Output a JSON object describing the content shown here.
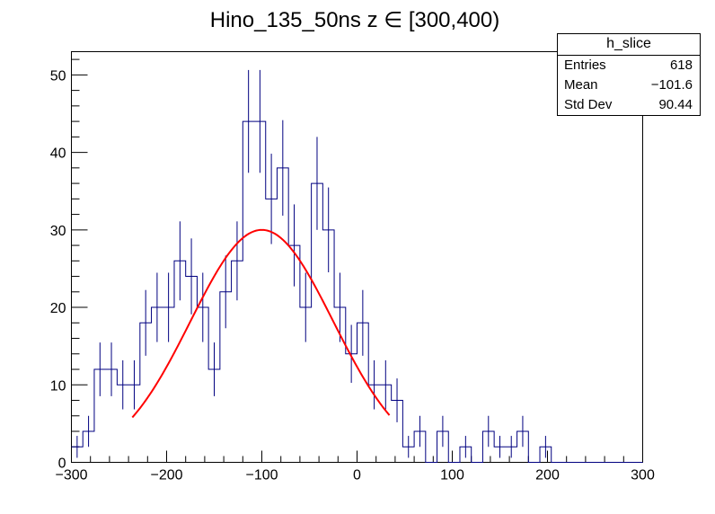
{
  "chart_data": {
    "type": "histogram",
    "title": "Hino_135_50ns z  ∈ [300,400)",
    "xlim": [
      -300,
      300
    ],
    "ylim": [
      0,
      53
    ],
    "xticks": [
      -300,
      -200,
      -100,
      0,
      100,
      200,
      300
    ],
    "xtick_labels": [
      "−300",
      "−200",
      "−100",
      "0",
      "100",
      "200",
      "300"
    ],
    "yticks": [
      0,
      10,
      20,
      30,
      40,
      50
    ],
    "ytick_labels": [
      "0",
      "10",
      "20",
      "30",
      "40",
      "50"
    ],
    "bin_width": 12,
    "bin_edges_start": -300,
    "counts": [
      2,
      4,
      12,
      12,
      10,
      10,
      18,
      20,
      20,
      26,
      24,
      20,
      12,
      22,
      26,
      44,
      44,
      34,
      38,
      28,
      20,
      36,
      30,
      20,
      14,
      18,
      10,
      10,
      8,
      2,
      4,
      0,
      4,
      0,
      2,
      0,
      4,
      2,
      2,
      4,
      0,
      2,
      0,
      0,
      0,
      0,
      0,
      0,
      0,
      0
    ],
    "hist_color": "#000080",
    "fit": {
      "type": "gaussian",
      "color": "#ff0000",
      "amplitude": 30,
      "mean": -100,
      "sigma": 75,
      "xrange": [
        -236,
        34
      ]
    },
    "stats_box": {
      "name": "h_slice",
      "rows": [
        {
          "label": "Entries",
          "value": "618"
        },
        {
          "label": "Mean",
          "value": "−101.6"
        },
        {
          "label": "Std Dev",
          "value": "90.44"
        }
      ]
    }
  }
}
